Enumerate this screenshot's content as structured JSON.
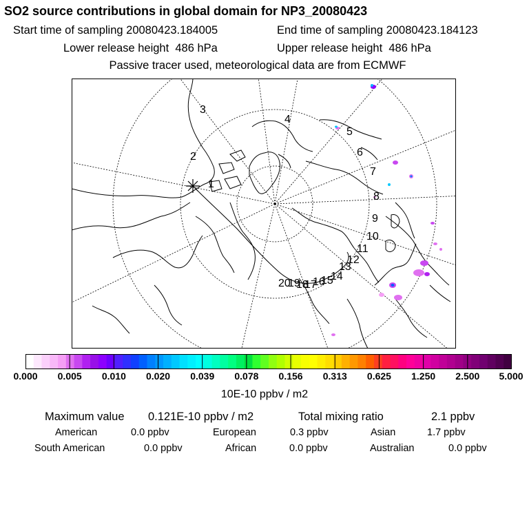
{
  "header": {
    "title": "SO2 source contributions in global domain for NP3_20080423",
    "start_time": "Start time of sampling 20080423.184005",
    "end_time": "End time of sampling 20080423.184123",
    "lower_height": "Lower release height  486 hPa",
    "upper_height": "Upper release height  486 hPa",
    "tracer_note": "Passive tracer used, meteorological data are from ECMWF"
  },
  "map": {
    "track_labels": [
      "1",
      "2",
      "3",
      "4",
      "5",
      "6",
      "7",
      "8",
      "9",
      "10",
      "11",
      "12",
      "13",
      "14",
      "15",
      "16",
      "17",
      "18",
      "19",
      "20"
    ]
  },
  "colorbar": {
    "tick_labels": [
      "0.000",
      "0.005",
      "0.010",
      "0.020",
      "0.039",
      "0.078",
      "0.156",
      "0.313",
      "0.625",
      "1.250",
      "2.500",
      "5.000"
    ],
    "units": "10E-10 ppbv / m2",
    "colors": [
      "#ffffff",
      "#fde8fd",
      "#fbd0fb",
      "#f8b8f8",
      "#f59ff5",
      "#e070f0",
      "#c848f0",
      "#b020f0",
      "#9810e8",
      "#8c00ff",
      "#6e00ff",
      "#5020ff",
      "#3030ff",
      "#1040ff",
      "#0060ff",
      "#0080ff",
      "#0098ff",
      "#00b0ff",
      "#00c8ff",
      "#00e0ff",
      "#00f0ff",
      "#00ffff",
      "#00ffe0",
      "#00ffc0",
      "#00ffa0",
      "#00ff80",
      "#00f060",
      "#00e040",
      "#30ff30",
      "#60ff20",
      "#90ff10",
      "#b0ff00",
      "#d0ff00",
      "#e8ff00",
      "#f8ff00",
      "#ffff00",
      "#ffee00",
      "#ffdd00",
      "#ffcc00",
      "#ffb000",
      "#ff9800",
      "#ff8000",
      "#ff6000",
      "#ff4020",
      "#ff2040",
      "#ff1060",
      "#ff0080",
      "#ff0098",
      "#f000a0",
      "#e000a8",
      "#d000a0",
      "#c00098",
      "#b00090",
      "#a00088",
      "#900080",
      "#800078",
      "#700070",
      "#600060",
      "#500050",
      "#400040"
    ]
  },
  "summary": {
    "max_label": "Maximum value",
    "max_value": "0.121E-10 ppbv / m2",
    "total_label": "Total mixing ratio",
    "total_value": "2.1 ppbv",
    "regions": [
      {
        "name": "American",
        "value": "0.0 ppbv"
      },
      {
        "name": "European",
        "value": "0.3 ppbv"
      },
      {
        "name": "Asian",
        "value": "1.7 ppbv"
      },
      {
        "name": "South American",
        "value": "0.0 ppbv"
      },
      {
        "name": "African",
        "value": "0.0 ppbv"
      },
      {
        "name": "Australian",
        "value": "0.0 ppbv"
      }
    ]
  }
}
